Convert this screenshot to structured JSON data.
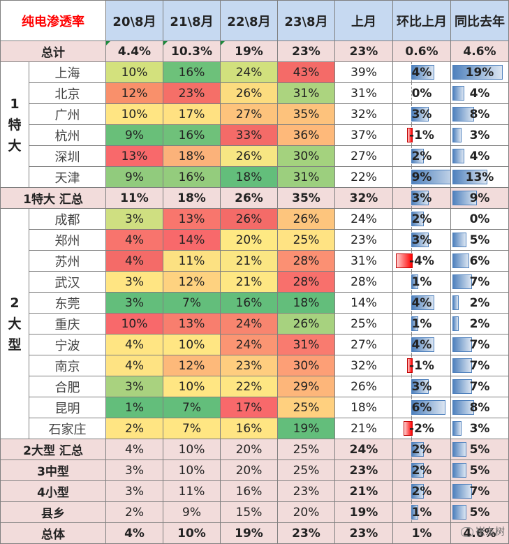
{
  "header": {
    "title": "纯电渗透率",
    "columns": [
      "20\\8月",
      "21\\8月",
      "22\\8月",
      "23\\8月",
      "上月",
      "环比上月",
      "同比去年"
    ]
  },
  "colors": {
    "header_bg": "#c6d9f1",
    "summary_bg": "#f2dcdb",
    "title_text": "#ff0000",
    "bar_positive": "#4f81bd",
    "bar_negative": "#ff0000"
  },
  "rows": [
    {
      "kind": "summary",
      "label": "总计",
      "values": [
        "4.4%",
        "10.3%",
        "19%",
        "23%"
      ],
      "prev": "23%",
      "mom": "0.6%",
      "mom_val": 0.6,
      "yoy": "4.6%",
      "yoy_val": 4.6,
      "bold": true,
      "no_bars": true
    },
    {
      "kind": "city",
      "group": "1\n特\n大",
      "group_span": 6,
      "label": "上海",
      "values": [
        "10%",
        "16%",
        "24%",
        "43%"
      ],
      "colors": [
        "#d3e17d",
        "#6dc17a",
        "#d1e07d",
        "#f46b68"
      ],
      "prev": "39%",
      "mom": "4%",
      "mom_val": 4,
      "yoy": "19%",
      "yoy_val": 19
    },
    {
      "kind": "city",
      "label": "北京",
      "values": [
        "12%",
        "23%",
        "26%",
        "31%"
      ],
      "colors": [
        "#f9906b",
        "#f56f68",
        "#fcdc7f",
        "#acd47f"
      ],
      "prev": "31%",
      "mom": "0%",
      "mom_val": 0,
      "yoy": "4%",
      "yoy_val": 4
    },
    {
      "kind": "city",
      "label": "广州",
      "values": [
        "10%",
        "17%",
        "27%",
        "35%"
      ],
      "colors": [
        "#ffe583",
        "#ffe182",
        "#fdc37c",
        "#fdc27c"
      ],
      "prev": "32%",
      "mom": "3%",
      "mom_val": 3,
      "yoy": "8%",
      "yoy_val": 8
    },
    {
      "kind": "city",
      "label": "杭州",
      "values": [
        "9%",
        "16%",
        "33%",
        "36%"
      ],
      "colors": [
        "#69bf79",
        "#6fc17a",
        "#f46b68",
        "#feb97a"
      ],
      "prev": "37%",
      "mom": "-1%",
      "mom_val": -1,
      "yoy": "3%",
      "yoy_val": 3
    },
    {
      "kind": "city",
      "label": "深圳",
      "values": [
        "13%",
        "18%",
        "26%",
        "30%"
      ],
      "colors": [
        "#f8696b",
        "#fbb27a",
        "#f7e683",
        "#a4d27e"
      ],
      "prev": "27%",
      "mom": "2%",
      "mom_val": 2,
      "yoy": "4%",
      "yoy_val": 4
    },
    {
      "kind": "city",
      "label": "天津",
      "values": [
        "9%",
        "16%",
        "18%",
        "31%"
      ],
      "colors": [
        "#91cb7d",
        "#94cc7d",
        "#63be7b",
        "#9ccf7e"
      ],
      "prev": "22%",
      "mom": "9%",
      "mom_val": 9,
      "yoy": "13%",
      "yoy_val": 13
    },
    {
      "kind": "summary",
      "label": "1特大 汇总",
      "values": [
        "11%",
        "18%",
        "26%",
        "35%"
      ],
      "prev": "32%",
      "mom": "3%",
      "mom_val": 3,
      "yoy": "9%",
      "yoy_val": 9,
      "bold": true
    },
    {
      "kind": "city",
      "group": "2\n大\n型",
      "group_span": 11,
      "label": "成都",
      "values": [
        "3%",
        "13%",
        "26%",
        "26%"
      ],
      "colors": [
        "#cfdf81",
        "#f8766d",
        "#f46b68",
        "#fdc57d"
      ],
      "prev": "24%",
      "mom": "2%",
      "mom_val": 2,
      "yoy": "0%",
      "yoy_val": 0
    },
    {
      "kind": "city",
      "label": "郑州",
      "values": [
        "4%",
        "14%",
        "20%",
        "25%"
      ],
      "colors": [
        "#f8746d",
        "#f8696b",
        "#fee983",
        "#ffe383"
      ],
      "prev": "23%",
      "mom": "3%",
      "mom_val": 3,
      "yoy": "5%",
      "yoy_val": 5
    },
    {
      "kind": "city",
      "label": "苏州",
      "values": [
        "4%",
        "11%",
        "21%",
        "28%"
      ],
      "colors": [
        "#f46b68",
        "#fce182",
        "#fbe683",
        "#fb9073"
      ],
      "prev": "31%",
      "mom": "-4%",
      "mom_val": -4,
      "yoy": "6%",
      "yoy_val": 6
    },
    {
      "kind": "city",
      "label": "武汉",
      "values": [
        "3%",
        "12%",
        "21%",
        "28%"
      ],
      "colors": [
        "#ffe583",
        "#fed280",
        "#fee783",
        "#f8706c"
      ],
      "prev": "28%",
      "mom": "1%",
      "mom_val": 1,
      "yoy": "7%",
      "yoy_val": 7
    },
    {
      "kind": "city",
      "label": "东莞",
      "values": [
        "3%",
        "7%",
        "16%",
        "18%"
      ],
      "colors": [
        "#63be7b",
        "#63be7b",
        "#63be7b",
        "#63be7b"
      ],
      "prev": "14%",
      "mom": "4%",
      "mom_val": 4,
      "yoy": "2%",
      "yoy_val": 2
    },
    {
      "kind": "city",
      "label": "重庆",
      "values": [
        "10%",
        "13%",
        "24%",
        "26%"
      ],
      "colors": [
        "#f8696b",
        "#f87e6e",
        "#f8856f",
        "#a7d27f"
      ],
      "prev": "25%",
      "mom": "1%",
      "mom_val": 1,
      "yoy": "2%",
      "yoy_val": 2
    },
    {
      "kind": "city",
      "label": "宁波",
      "values": [
        "4%",
        "10%",
        "24%",
        "31%"
      ],
      "colors": [
        "#ffe583",
        "#ffe683",
        "#fb9573",
        "#f97b6f"
      ],
      "prev": "27%",
      "mom": "4%",
      "mom_val": 4,
      "yoy": "7%",
      "yoy_val": 7
    },
    {
      "kind": "city",
      "label": "南京",
      "values": [
        "4%",
        "12%",
        "23%",
        "30%"
      ],
      "colors": [
        "#fee383",
        "#fdb97a",
        "#fecd7f",
        "#fd9f76"
      ],
      "prev": "32%",
      "mom": "-1%",
      "mom_val": -1,
      "yoy": "7%",
      "yoy_val": 7
    },
    {
      "kind": "city",
      "label": "合肥",
      "values": [
        "3%",
        "10%",
        "22%",
        "29%"
      ],
      "colors": [
        "#a9d27f",
        "#ffe683",
        "#fee683",
        "#fdb67a"
      ],
      "prev": "26%",
      "mom": "3%",
      "mom_val": 3,
      "yoy": "7%",
      "yoy_val": 7
    },
    {
      "kind": "city",
      "label": "昆明",
      "values": [
        "1%",
        "7%",
        "17%",
        "25%"
      ],
      "colors": [
        "#63be7b",
        "#63be7b",
        "#f8696b",
        "#ffd07f"
      ],
      "prev": "18%",
      "mom": "6%",
      "mom_val": 6,
      "yoy": "8%",
      "yoy_val": 8
    },
    {
      "kind": "city",
      "label": "石家庄",
      "values": [
        "2%",
        "7%",
        "16%",
        "19%"
      ],
      "colors": [
        "#ffe583",
        "#ffe683",
        "#ffe583",
        "#63be7b"
      ],
      "prev": "21%",
      "mom": "-2%",
      "mom_val": -2,
      "yoy": "3%",
      "yoy_val": 3
    },
    {
      "kind": "summary",
      "label": "2大型 汇总",
      "values": [
        "4%",
        "10%",
        "20%",
        "25%"
      ],
      "prev": "24%",
      "mom": "2%",
      "mom_val": 2,
      "yoy": "5%",
      "yoy_val": 5
    },
    {
      "kind": "summary",
      "label": "3中型",
      "values": [
        "3%",
        "10%",
        "20%",
        "25%"
      ],
      "prev": "23%",
      "mom": "2%",
      "mom_val": 2,
      "yoy": "5%",
      "yoy_val": 5
    },
    {
      "kind": "summary",
      "label": "4小型",
      "values": [
        "3%",
        "11%",
        "16%",
        "23%"
      ],
      "prev": "21%",
      "mom": "2%",
      "mom_val": 2,
      "yoy": "7%",
      "yoy_val": 7
    },
    {
      "kind": "summary",
      "label": "县乡",
      "values": [
        "2%",
        "9%",
        "15%",
        "20%"
      ],
      "prev": "19%",
      "mom": "1%",
      "mom_val": 1,
      "yoy": "5%",
      "yoy_val": 5
    },
    {
      "kind": "summary",
      "label": "总体",
      "values": [
        "4%",
        "10%",
        "19%",
        "23%"
      ],
      "prev": "23%",
      "mom": "1%",
      "mom_val": 1,
      "yoy": "4.6%",
      "yoy_val": 4.6,
      "bold_values": true,
      "no_mom_bar": true,
      "no_yoy_bar": true
    }
  ],
  "watermark": "崔东树"
}
